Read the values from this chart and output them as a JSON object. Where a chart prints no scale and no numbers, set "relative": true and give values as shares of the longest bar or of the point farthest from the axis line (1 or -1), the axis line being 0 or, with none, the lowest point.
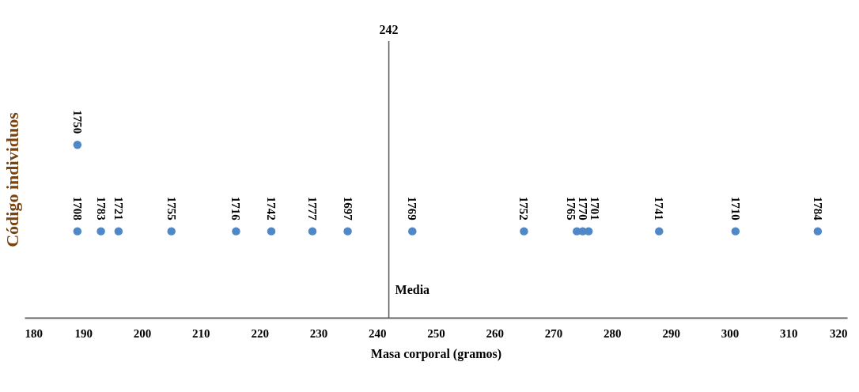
{
  "chart_data": {
    "type": "scatter",
    "relative": true,
    "xlabel": "Masa corporal (gramos)",
    "ylabel": "Código individuos",
    "x": [
      189,
      189,
      193,
      196,
      205,
      216,
      222,
      229,
      235,
      246,
      265,
      274,
      275,
      276,
      288,
      301,
      315
    ],
    "series": [
      {
        "color": "#4f87c7",
        "values": [
          1,
          0.5,
          0.5,
          0.5,
          0.5,
          0.5,
          0.5,
          0.5,
          0.5,
          0.5,
          0.5,
          0.5,
          0.5,
          0.5,
          0.5,
          0.5,
          0.5
        ]
      }
    ],
    "xlim": [
      180,
      320
    ],
    "xticks": [
      180,
      190,
      200,
      210,
      220,
      230,
      240,
      250,
      260,
      270,
      280,
      290,
      300,
      310,
      320
    ],
    "marker": "circle",
    "grid": false,
    "ref_lines": [
      {
        "axis": "x",
        "value": 242,
        "label": "Media"
      }
    ],
    "annotations": [
      "242",
      {
        "text": "1750",
        "x": 189,
        "y": 1
      },
      {
        "text": "1708",
        "x": 189,
        "y": 0.5
      },
      {
        "text": "1783",
        "x": 193,
        "y": 0.5
      },
      {
        "text": "1721",
        "x": 196,
        "y": 0.5
      },
      {
        "text": "1755",
        "x": 205,
        "y": 0.5
      },
      {
        "text": "1716",
        "x": 216,
        "y": 0.5
      },
      {
        "text": "1742",
        "x": 222,
        "y": 0.5
      },
      {
        "text": "1777",
        "x": 229,
        "y": 0.5
      },
      {
        "text": "1697",
        "x": 235,
        "y": 0.5
      },
      {
        "text": "1769",
        "x": 246,
        "y": 0.5
      },
      {
        "text": "1752",
        "x": 265,
        "y": 0.5
      },
      {
        "text": "1765",
        "x": 274,
        "y": 0.5
      },
      {
        "text": "1770",
        "x": 275,
        "y": 0.5
      },
      {
        "text": "1701",
        "x": 276,
        "y": 0.5
      },
      {
        "text": "1741",
        "x": 288,
        "y": 0.5
      },
      {
        "text": "1710",
        "x": 301,
        "y": 0.5
      },
      {
        "text": "1784",
        "x": 315,
        "y": 0.5
      }
    ]
  }
}
